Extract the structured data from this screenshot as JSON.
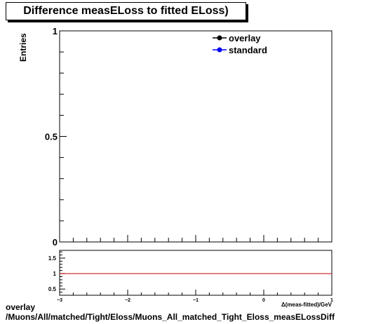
{
  "chart_data": [
    {
      "type": "line",
      "title": "Difference measELoss to fitted ELoss)",
      "ylabel": "Entries",
      "xlim": [
        -3,
        1
      ],
      "ylim": [
        0,
        1
      ],
      "y_ticks": [
        {
          "value": 0,
          "label": "0"
        },
        {
          "value": 0.5,
          "label": "0.5"
        },
        {
          "value": 1,
          "label": "1"
        }
      ],
      "legend": {
        "position": "top-right",
        "entries": [
          {
            "name": "overlay",
            "color": "#000000",
            "marker": "circle"
          },
          {
            "name": "standard",
            "color": "#0000ff",
            "marker": "circle"
          }
        ]
      },
      "series": []
    },
    {
      "type": "line",
      "xlabel": "Δ(meas-fitted)/GeV",
      "xlim": [
        -3,
        1
      ],
      "ylim": [
        0.3,
        1.75
      ],
      "x_ticks": [
        {
          "value": -3,
          "label": "−3"
        },
        {
          "value": -2,
          "label": "−2"
        },
        {
          "value": -1,
          "label": "−1"
        },
        {
          "value": 0,
          "label": "0"
        },
        {
          "value": 1,
          "label": "1"
        }
      ],
      "y_ticks": [
        {
          "value": 0.5,
          "label": "0.5"
        },
        {
          "value": 1,
          "label": "1"
        },
        {
          "value": 1.5,
          "label": "1.5"
        }
      ],
      "reference_line": {
        "y": 1,
        "color": "#cc0000"
      }
    }
  ],
  "footer": {
    "line1": "overlay",
    "line2": "/Muons/All/matched/Tight/Eloss/Muons_All_matched_Tight_Eloss_measELossDiff"
  }
}
